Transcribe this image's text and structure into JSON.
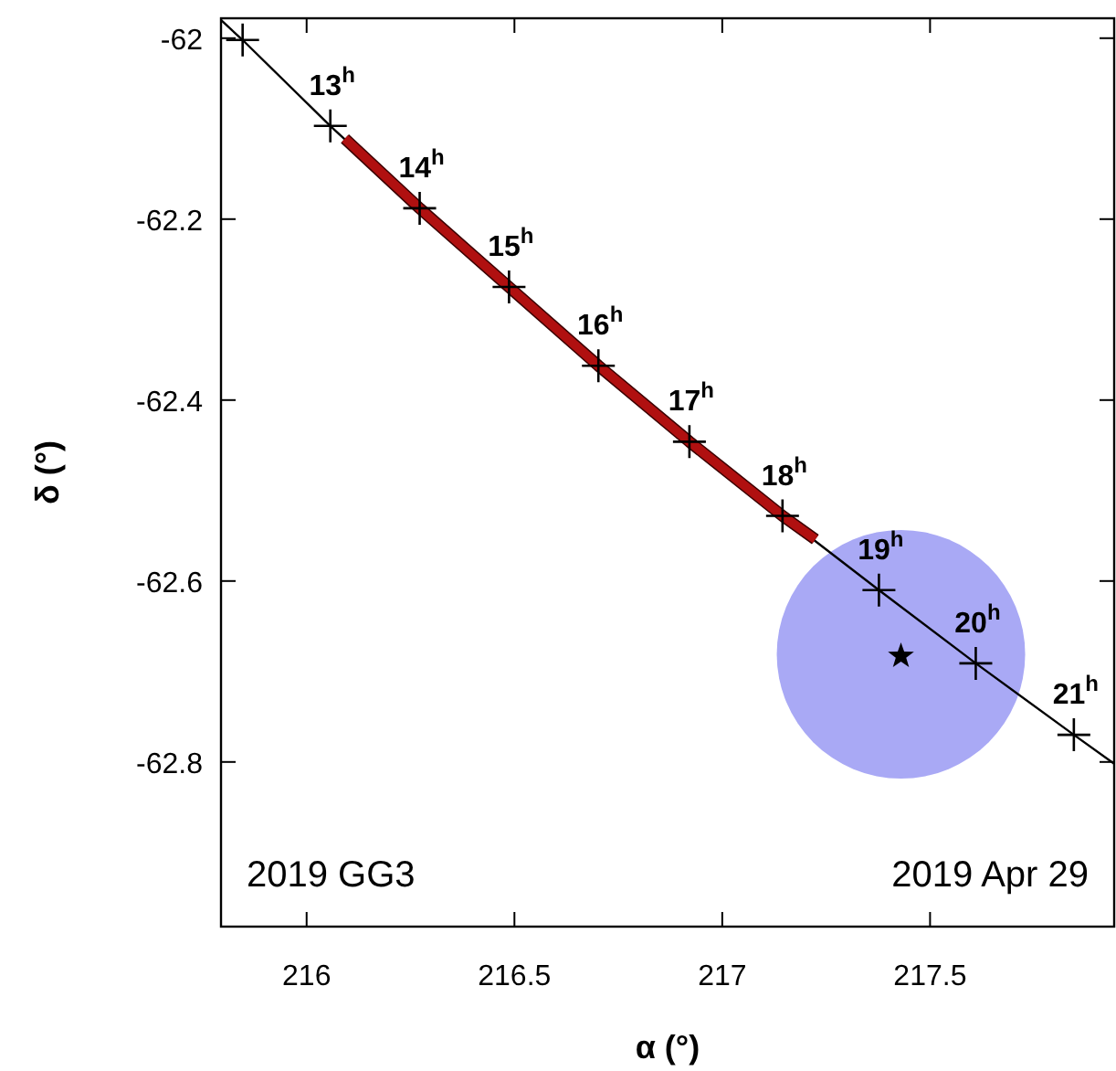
{
  "chart_data": {
    "type": "scatter",
    "xlabel": "α (°)",
    "ylabel": "δ (°)",
    "xlim": [
      215.794,
      217.943
    ],
    "ylim": [
      -62.982,
      -61.978
    ],
    "xticks": [
      216,
      216.5,
      217,
      217.5
    ],
    "yticks": [
      -62,
      -62.2,
      -62.4,
      -62.6,
      -62.8
    ],
    "grid": false,
    "series": [
      {
        "type": "bubble",
        "color": "#a9a9f5",
        "x": [
          217.43
        ],
        "values": [
          -62.681
        ],
        "sizes": [
          1
        ]
      },
      {
        "type": "line",
        "color": "#000000",
        "x": [
          215.794,
          215.846,
          216.057,
          216.272,
          216.487,
          216.702,
          216.921,
          217.145,
          217.377,
          217.61,
          217.846,
          217.943
        ],
        "values": [
          -61.98,
          -62.002,
          -62.097,
          -62.188,
          -62.275,
          -62.362,
          -62.446,
          -62.528,
          -62.61,
          -62.691,
          -62.77,
          -62.802
        ]
      },
      {
        "type": "line",
        "color": "#b01010",
        "x": [
          216.092,
          216.272,
          216.487,
          216.702,
          216.921,
          217.145,
          217.224
        ],
        "values": [
          -62.111,
          -62.188,
          -62.275,
          -62.362,
          -62.446,
          -62.528,
          -62.554
        ]
      },
      {
        "marker": "cross",
        "color": "#000000",
        "x": [
          215.846,
          216.057,
          216.272,
          216.487,
          216.702,
          216.921,
          217.145,
          217.377,
          217.61,
          217.846
        ],
        "values": [
          -62.002,
          -62.097,
          -62.188,
          -62.275,
          -62.362,
          -62.446,
          -62.528,
          -62.61,
          -62.691,
          -62.77
        ]
      },
      {
        "marker": "star",
        "color": "#000000",
        "x": [
          217.43
        ],
        "values": [
          -62.683
        ]
      }
    ],
    "annotations": [
      {
        "text": "13$^{h}$",
        "x": 216.057,
        "y": -62.097
      },
      {
        "text": "14$^{h}$",
        "x": 216.272,
        "y": -62.188
      },
      {
        "text": "15$^{h}$",
        "x": 216.487,
        "y": -62.275
      },
      {
        "text": "16$^{h}$",
        "x": 216.702,
        "y": -62.362
      },
      {
        "text": "17$^{h}$",
        "x": 216.921,
        "y": -62.446
      },
      {
        "text": "18$^{h}$",
        "x": 217.145,
        "y": -62.528
      },
      {
        "text": "19$^{h}$",
        "x": 217.377,
        "y": -62.61
      },
      {
        "text": "20$^{h}$",
        "x": 217.61,
        "y": -62.691
      },
      {
        "text": "21$^{h}$",
        "x": 217.846,
        "y": -62.77
      },
      "2019 GG3",
      "2019 Apr 29"
    ]
  }
}
